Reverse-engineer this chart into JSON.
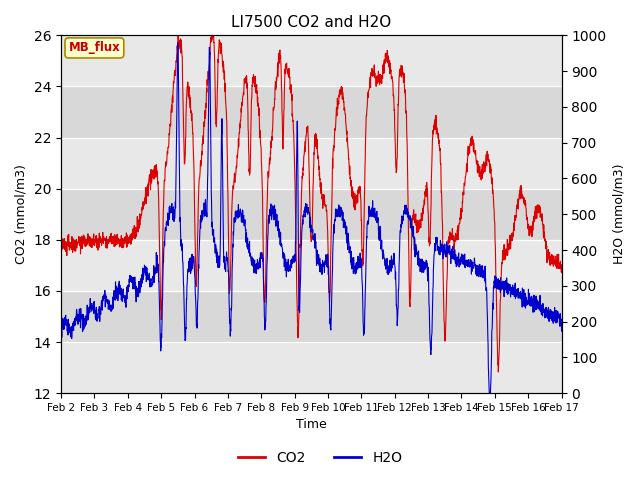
{
  "title": "LI7500 CO2 and H2O",
  "xlabel": "Time",
  "ylabel_left": "CO2 (mmol/m3)",
  "ylabel_right": "H2O (mmol/m3)",
  "ylim_left": [
    12,
    26
  ],
  "ylim_right": [
    0,
    1000
  ],
  "yticks_left": [
    12,
    14,
    16,
    18,
    20,
    22,
    24,
    26
  ],
  "yticks_right": [
    0,
    100,
    200,
    300,
    400,
    500,
    600,
    700,
    800,
    900,
    1000
  ],
  "xtick_labels": [
    "Feb 2",
    "Feb 3",
    "Feb 4",
    "Feb 5",
    "Feb 6",
    "Feb 7",
    "Feb 8",
    "Feb 9",
    "Feb 10",
    "Feb 11",
    "Feb 12",
    "Feb 13",
    "Feb 14",
    "Feb 15",
    "Feb 16",
    "Feb 17"
  ],
  "co2_color": "#dd0000",
  "h2o_color": "#0000cc",
  "line_width": 0.8,
  "bg_color": "#ffffff",
  "plot_bg_color": "#d8d8d8",
  "stripe_light_color": "#e8e8e8",
  "annotation_text": "MB_flux",
  "annotation_bg": "#ffffcc",
  "annotation_border": "#aa8800",
  "legend_co2": "CO2",
  "legend_h2o": "H2O",
  "n_days": 15,
  "n_points": 2160
}
